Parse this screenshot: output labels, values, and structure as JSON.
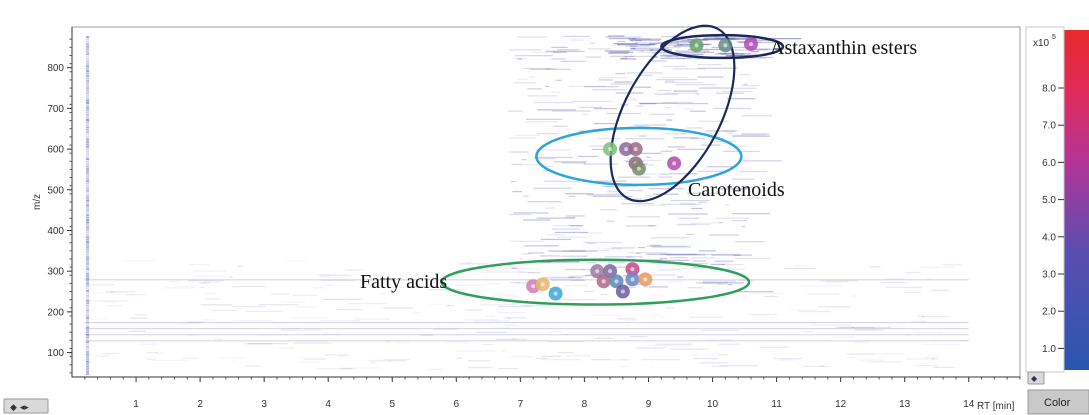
{
  "chart_data": {
    "type": "scatter",
    "xlabel": "RT [min]",
    "ylabel": "m/z",
    "xlim": [
      0,
      14.8
    ],
    "ylim": [
      40,
      900
    ],
    "x_ticks": [
      1,
      2,
      3,
      4,
      5,
      6,
      7,
      8,
      9,
      10,
      11,
      12,
      13,
      14
    ],
    "y_ticks": [
      100,
      200,
      300,
      400,
      500,
      600,
      700,
      800
    ],
    "grid": false,
    "colorbar": {
      "exponent_label": "x10",
      "exponent_power": "5",
      "ticks": [
        "1.0",
        "2.0",
        "3.0",
        "4.0",
        "5.0",
        "6.0",
        "7.0",
        "8.0"
      ],
      "colors": [
        "#2a56b0",
        "#8b3fa8",
        "#d5296c",
        "#ea2a2a"
      ]
    },
    "groups": [
      {
        "name": "Astaxanthin esters",
        "ellipse_color": "#1b2a5a",
        "ellipse": {
          "cx": 10.15,
          "cy": 852,
          "rx": 0.95,
          "ry": 28
        },
        "points": [
          {
            "x": 9.75,
            "y": 855,
            "color": "#6aa06a"
          },
          {
            "x": 10.2,
            "y": 855,
            "color": "#5e8f86"
          },
          {
            "x": 10.6,
            "y": 858,
            "color": "#b34ab3"
          }
        ]
      },
      {
        "name": "Carotenoids",
        "ellipse_color": "#2ea4dc",
        "ellipse": {
          "cx": 8.85,
          "cy": 582,
          "rx": 1.6,
          "ry": 70
        },
        "points": [
          {
            "x": 8.4,
            "y": 600,
            "color": "#7bbf7b"
          },
          {
            "x": 8.65,
            "y": 600,
            "color": "#8a6a9e"
          },
          {
            "x": 8.8,
            "y": 600,
            "color": "#9b6a85"
          },
          {
            "x": 8.8,
            "y": 565,
            "color": "#8e6a7a"
          },
          {
            "x": 8.85,
            "y": 552,
            "color": "#7a8a6a"
          },
          {
            "x": 9.4,
            "y": 565,
            "color": "#b34ab3"
          }
        ]
      },
      {
        "name": "Fatty acids",
        "ellipse_color": "#2ea05a",
        "ellipse": {
          "cx": 8.17,
          "cy": 273,
          "rx": 2.4,
          "ry": 55
        },
        "points": [
          {
            "x": 7.2,
            "y": 263,
            "color": "#d47ab4"
          },
          {
            "x": 7.35,
            "y": 268,
            "color": "#e8b56a"
          },
          {
            "x": 7.55,
            "y": 245,
            "color": "#3aa6dc"
          },
          {
            "x": 8.2,
            "y": 300,
            "color": "#9a7aa5"
          },
          {
            "x": 8.4,
            "y": 300,
            "color": "#7a6aa0"
          },
          {
            "x": 8.3,
            "y": 275,
            "color": "#b06a8a"
          },
          {
            "x": 8.5,
            "y": 275,
            "color": "#5a8ab4"
          },
          {
            "x": 8.75,
            "y": 305,
            "color": "#c04a8a"
          },
          {
            "x": 8.75,
            "y": 280,
            "color": "#6a8ac8"
          },
          {
            "x": 8.95,
            "y": 280,
            "color": "#e89a5a"
          },
          {
            "x": 8.6,
            "y": 250,
            "color": "#6a5aa0"
          }
        ]
      }
    ]
  },
  "ui": {
    "icon_left": "resize-horizontal-icon",
    "icon_colorbar": "resize-icon",
    "color_button_label": "Color"
  }
}
